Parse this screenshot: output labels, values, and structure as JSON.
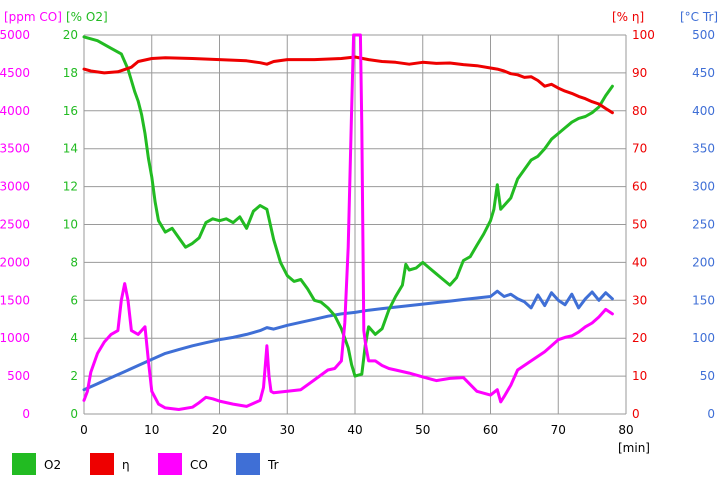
{
  "chart_data": {
    "type": "line",
    "x_unit": "[min]",
    "xlim": [
      0,
      80
    ],
    "x_ticks": [
      "0",
      "10",
      "20",
      "30",
      "40",
      "50",
      "60",
      "70",
      "80"
    ],
    "axes": {
      "co": {
        "label": "[ppm CO]",
        "ylim": [
          0,
          5000
        ],
        "ticks": [
          "0",
          "500",
          "1000",
          "1500",
          "2000",
          "2500",
          "3000",
          "3500",
          "4000",
          "4500",
          "5000"
        ],
        "color": "#ff00ff"
      },
      "o2": {
        "label": "[% O2]",
        "ylim": [
          0,
          20
        ],
        "ticks": [
          "0",
          "2",
          "4",
          "6",
          "8",
          "10",
          "12",
          "14",
          "16",
          "18",
          "20"
        ],
        "color": "#22bb22"
      },
      "eta": {
        "label": "[% η]",
        "ylim": [
          0,
          100
        ],
        "ticks": [
          "0",
          "10",
          "20",
          "30",
          "40",
          "50",
          "60",
          "70",
          "80",
          "90",
          "100"
        ],
        "color": "#ee0000"
      },
      "tr": {
        "label": "[°C Tr]",
        "ylim": [
          0,
          500
        ],
        "ticks": [
          "0",
          "50",
          "100",
          "150",
          "200",
          "250",
          "300",
          "350",
          "400",
          "450",
          "500"
        ],
        "color": "#3f6fd6"
      }
    },
    "grid": true,
    "legend_position": "bottom",
    "series": [
      {
        "key": "o2",
        "name": "O2",
        "axis": "o2",
        "color": "#22bb22",
        "points": [
          [
            0,
            19.9
          ],
          [
            2,
            19.7
          ],
          [
            4,
            19.3
          ],
          [
            5.5,
            19.0
          ],
          [
            6.5,
            18.2
          ],
          [
            7,
            17.6
          ],
          [
            7.5,
            17.0
          ],
          [
            8,
            16.5
          ],
          [
            8.5,
            15.8
          ],
          [
            9,
            14.8
          ],
          [
            9.5,
            13.5
          ],
          [
            10,
            12.5
          ],
          [
            10.5,
            11.2
          ],
          [
            11,
            10.2
          ],
          [
            12,
            9.6
          ],
          [
            13,
            9.8
          ],
          [
            14,
            9.3
          ],
          [
            15,
            8.8
          ],
          [
            16,
            9.0
          ],
          [
            17,
            9.3
          ],
          [
            18,
            10.1
          ],
          [
            19,
            10.3
          ],
          [
            20,
            10.2
          ],
          [
            21,
            10.3
          ],
          [
            22,
            10.1
          ],
          [
            23,
            10.4
          ],
          [
            24,
            9.8
          ],
          [
            25,
            10.7
          ],
          [
            26,
            11.0
          ],
          [
            27,
            10.8
          ],
          [
            28,
            9.2
          ],
          [
            29,
            8.0
          ],
          [
            30,
            7.3
          ],
          [
            31,
            7.0
          ],
          [
            32,
            7.1
          ],
          [
            33,
            6.6
          ],
          [
            34,
            6.0
          ],
          [
            35,
            5.9
          ],
          [
            36,
            5.6
          ],
          [
            37,
            5.2
          ],
          [
            38,
            4.5
          ],
          [
            39,
            3.5
          ],
          [
            39.5,
            2.6
          ],
          [
            40,
            2.0
          ],
          [
            41,
            2.1
          ],
          [
            41.5,
            3.6
          ],
          [
            42,
            4.6
          ],
          [
            43,
            4.2
          ],
          [
            44,
            4.5
          ],
          [
            45,
            5.5
          ],
          [
            46,
            6.2
          ],
          [
            47,
            6.8
          ],
          [
            47.5,
            7.9
          ],
          [
            48,
            7.6
          ],
          [
            49,
            7.7
          ],
          [
            50,
            8.0
          ],
          [
            51,
            7.7
          ],
          [
            52,
            7.4
          ],
          [
            53,
            7.1
          ],
          [
            54,
            6.8
          ],
          [
            55,
            7.2
          ],
          [
            56,
            8.1
          ],
          [
            57,
            8.3
          ],
          [
            58,
            8.9
          ],
          [
            59,
            9.5
          ],
          [
            60,
            10.2
          ],
          [
            60.5,
            10.8
          ],
          [
            61,
            12.1
          ],
          [
            61.5,
            10.8
          ],
          [
            62,
            11.0
          ],
          [
            63,
            11.4
          ],
          [
            64,
            12.4
          ],
          [
            65,
            12.9
          ],
          [
            66,
            13.4
          ],
          [
            67,
            13.6
          ],
          [
            68,
            14.0
          ],
          [
            69,
            14.5
          ],
          [
            70,
            14.8
          ],
          [
            71,
            15.1
          ],
          [
            72,
            15.4
          ],
          [
            73,
            15.6
          ],
          [
            74,
            15.7
          ],
          [
            75,
            15.9
          ],
          [
            76,
            16.2
          ],
          [
            77,
            16.8
          ],
          [
            78,
            17.3
          ]
        ]
      },
      {
        "key": "eta",
        "name": "η",
        "axis": "eta",
        "color": "#ee0000",
        "points": [
          [
            0,
            91
          ],
          [
            1,
            90.5
          ],
          [
            3,
            90
          ],
          [
            5,
            90.3
          ],
          [
            7,
            91.5
          ],
          [
            8,
            93
          ],
          [
            10,
            93.8
          ],
          [
            12,
            94
          ],
          [
            16,
            93.8
          ],
          [
            20,
            93.5
          ],
          [
            24,
            93.2
          ],
          [
            26,
            92.7
          ],
          [
            27,
            92.3
          ],
          [
            28,
            93
          ],
          [
            30,
            93.5
          ],
          [
            34,
            93.5
          ],
          [
            38,
            93.8
          ],
          [
            40,
            94.2
          ],
          [
            42,
            93.5
          ],
          [
            44,
            93
          ],
          [
            46,
            92.8
          ],
          [
            48,
            92.3
          ],
          [
            50,
            92.8
          ],
          [
            52,
            92.5
          ],
          [
            54,
            92.6
          ],
          [
            56,
            92.2
          ],
          [
            58,
            91.9
          ],
          [
            60,
            91.3
          ],
          [
            61,
            91
          ],
          [
            62,
            90.5
          ],
          [
            63,
            89.8
          ],
          [
            64,
            89.5
          ],
          [
            65,
            88.8
          ],
          [
            66,
            89
          ],
          [
            67,
            88
          ],
          [
            68,
            86.5
          ],
          [
            69,
            87
          ],
          [
            70,
            86
          ],
          [
            71,
            85.2
          ],
          [
            72,
            84.6
          ],
          [
            73,
            83.8
          ],
          [
            74,
            83.2
          ],
          [
            75,
            82.4
          ],
          [
            76,
            81.8
          ],
          [
            77,
            80.6
          ],
          [
            78,
            79.5
          ]
        ]
      },
      {
        "key": "co",
        "name": "CO",
        "axis": "co",
        "color": "#ff00ff",
        "points": [
          [
            0,
            180
          ],
          [
            0.5,
            300
          ],
          [
            1,
            550
          ],
          [
            2,
            800
          ],
          [
            3,
            950
          ],
          [
            4,
            1050
          ],
          [
            5,
            1100
          ],
          [
            5.5,
            1500
          ],
          [
            6,
            1720
          ],
          [
            6.5,
            1500
          ],
          [
            7,
            1100
          ],
          [
            8,
            1050
          ],
          [
            9,
            1150
          ],
          [
            9.5,
            700
          ],
          [
            10,
            300
          ],
          [
            11,
            130
          ],
          [
            12,
            80
          ],
          [
            14,
            60
          ],
          [
            16,
            90
          ],
          [
            17,
            150
          ],
          [
            18,
            220
          ],
          [
            19,
            200
          ],
          [
            20,
            170
          ],
          [
            22,
            130
          ],
          [
            24,
            100
          ],
          [
            25,
            140
          ],
          [
            26,
            180
          ],
          [
            26.5,
            350
          ],
          [
            27,
            900
          ],
          [
            27.3,
            500
          ],
          [
            27.6,
            300
          ],
          [
            28,
            280
          ],
          [
            30,
            300
          ],
          [
            32,
            320
          ],
          [
            34,
            450
          ],
          [
            36,
            580
          ],
          [
            37,
            600
          ],
          [
            38,
            700
          ],
          [
            38.5,
            1200
          ],
          [
            39,
            2200
          ],
          [
            39.5,
            4000
          ],
          [
            39.8,
            5000
          ],
          [
            40.8,
            5000
          ],
          [
            41,
            3800
          ],
          [
            41.3,
            1100
          ],
          [
            41.6,
            900
          ],
          [
            42,
            700
          ],
          [
            43,
            700
          ],
          [
            44,
            640
          ],
          [
            45,
            600
          ],
          [
            46,
            580
          ],
          [
            48,
            540
          ],
          [
            50,
            490
          ],
          [
            52,
            440
          ],
          [
            54,
            470
          ],
          [
            56,
            480
          ],
          [
            58,
            300
          ],
          [
            60,
            250
          ],
          [
            61,
            320
          ],
          [
            61.5,
            160
          ],
          [
            62,
            230
          ],
          [
            63,
            380
          ],
          [
            64,
            580
          ],
          [
            66,
            700
          ],
          [
            68,
            820
          ],
          [
            70,
            980
          ],
          [
            71,
            1010
          ],
          [
            72,
            1030
          ],
          [
            73,
            1080
          ],
          [
            74,
            1150
          ],
          [
            75,
            1200
          ],
          [
            76,
            1280
          ],
          [
            77,
            1380
          ],
          [
            78,
            1320
          ]
        ]
      },
      {
        "key": "tr",
        "name": "Tr",
        "axis": "tr",
        "color": "#3f6fd6",
        "points": [
          [
            0,
            32
          ],
          [
            2,
            40
          ],
          [
            4,
            48
          ],
          [
            6,
            56
          ],
          [
            8,
            64
          ],
          [
            10,
            72
          ],
          [
            12,
            80
          ],
          [
            14,
            85
          ],
          [
            16,
            90
          ],
          [
            18,
            94
          ],
          [
            20,
            98
          ],
          [
            22,
            101
          ],
          [
            24,
            105
          ],
          [
            26,
            110
          ],
          [
            27,
            114
          ],
          [
            28,
            112
          ],
          [
            30,
            117
          ],
          [
            32,
            121
          ],
          [
            34,
            125
          ],
          [
            36,
            129
          ],
          [
            38,
            132
          ],
          [
            40,
            134
          ],
          [
            42,
            137
          ],
          [
            44,
            139
          ],
          [
            46,
            141
          ],
          [
            48,
            143
          ],
          [
            50,
            145
          ],
          [
            52,
            147
          ],
          [
            54,
            149
          ],
          [
            56,
            151
          ],
          [
            58,
            153
          ],
          [
            60,
            155
          ],
          [
            61,
            162
          ],
          [
            62,
            155
          ],
          [
            63,
            158
          ],
          [
            64,
            152
          ],
          [
            65,
            148
          ],
          [
            66,
            140
          ],
          [
            67,
            157
          ],
          [
            68,
            143
          ],
          [
            69,
            160
          ],
          [
            70,
            150
          ],
          [
            71,
            144
          ],
          [
            72,
            158
          ],
          [
            73,
            140
          ],
          [
            74,
            152
          ],
          [
            75,
            161
          ],
          [
            76,
            150
          ],
          [
            77,
            160
          ],
          [
            78,
            152
          ]
        ]
      }
    ]
  }
}
